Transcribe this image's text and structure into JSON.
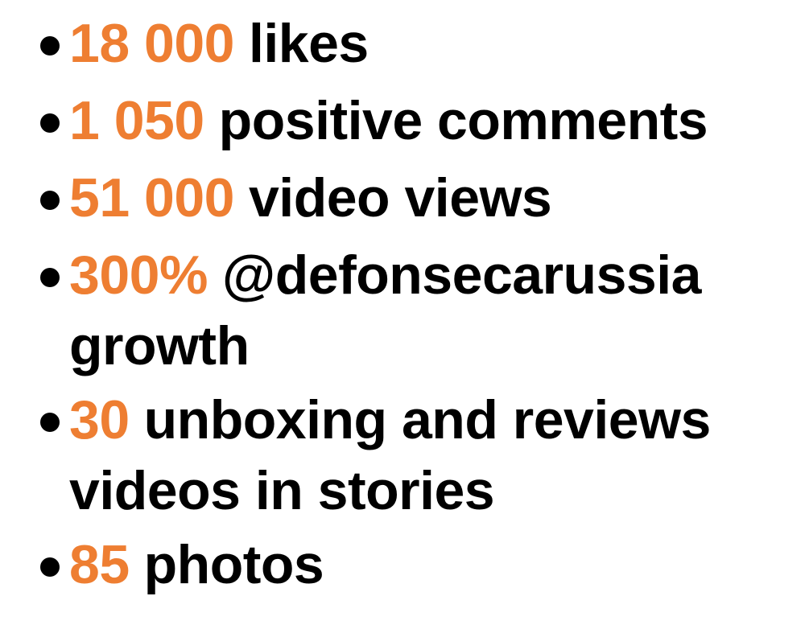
{
  "colors": {
    "accent": "#ee7e32",
    "text": "#000000",
    "background": "#ffffff"
  },
  "stats": [
    {
      "number": "18 000",
      "text": "likes"
    },
    {
      "number": "1 050",
      "text": "positive comments"
    },
    {
      "number": "51 000",
      "text": "video views"
    },
    {
      "number": "300%",
      "text": "@defonsecarussia growth"
    },
    {
      "number": "30",
      "text": "unboxing and reviews videos in stories"
    },
    {
      "number": "85",
      "text": "photos"
    }
  ]
}
